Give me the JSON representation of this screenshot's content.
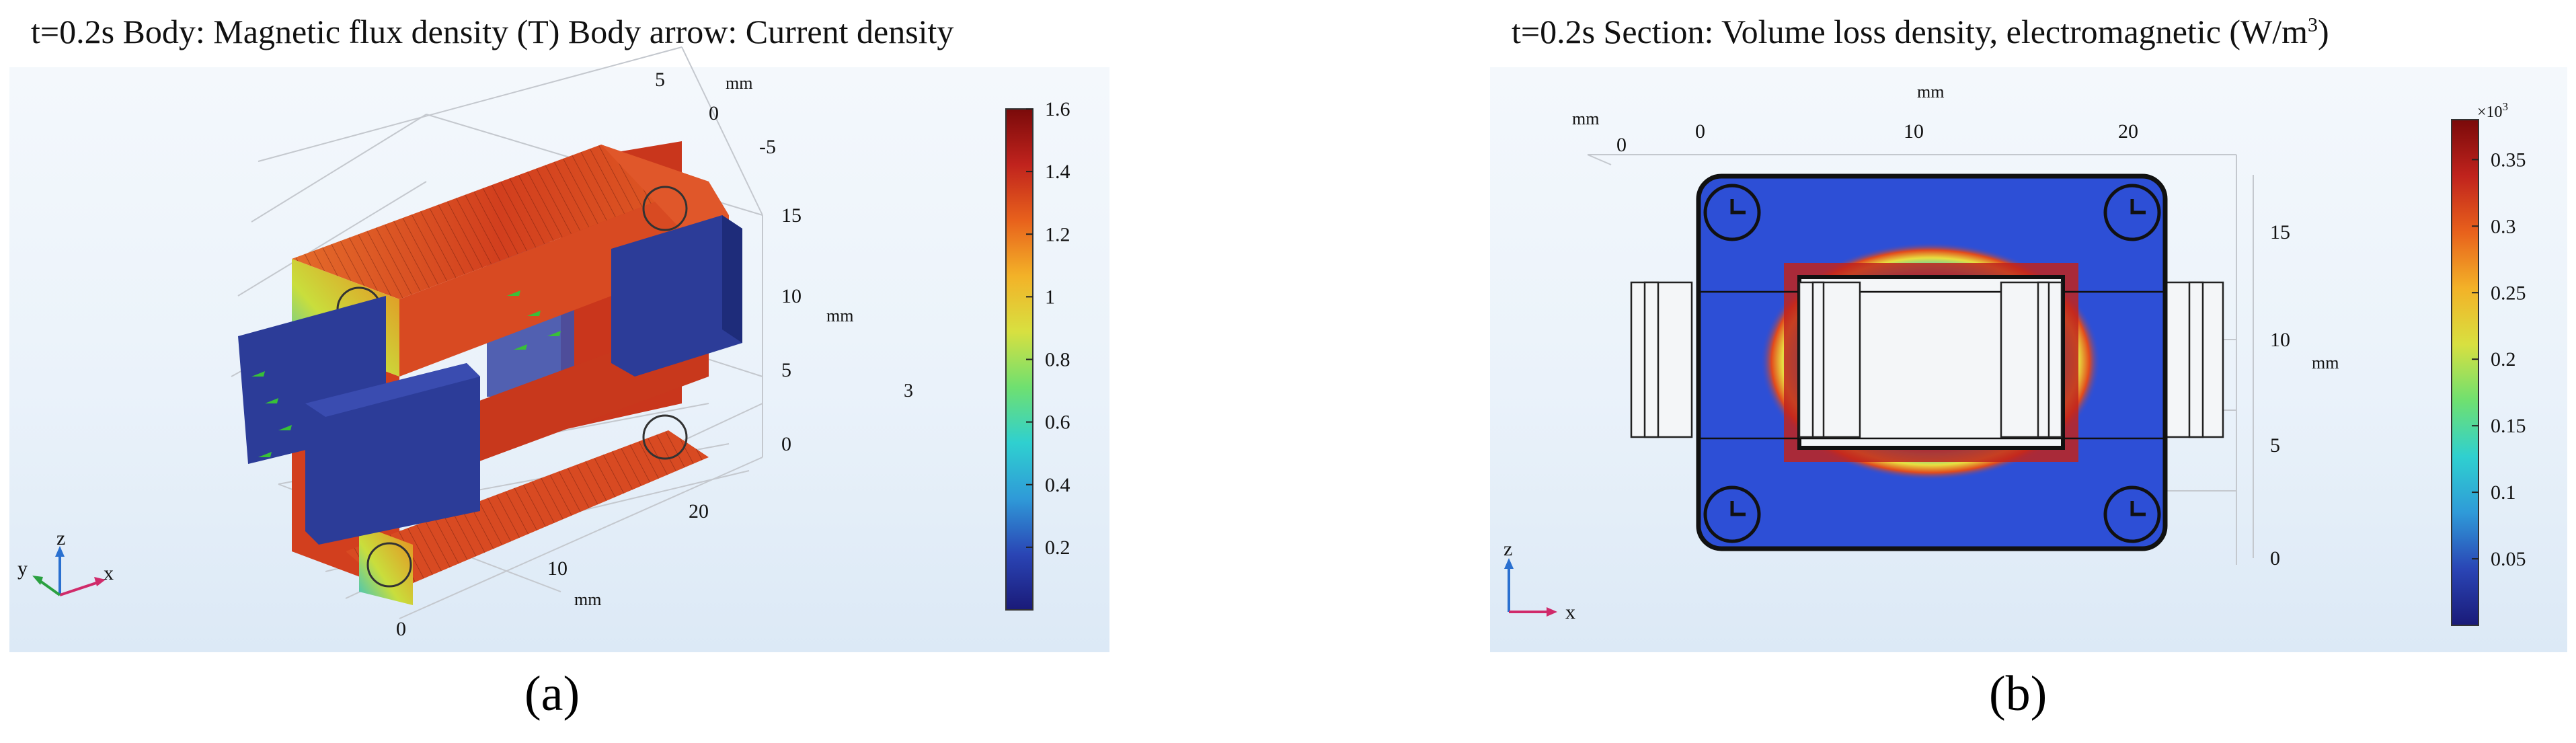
{
  "panels": [
    {
      "id": "a",
      "label": "(a)",
      "title": "t=0.2s  Body: Magnetic flux density (T) Body arrow: Current density",
      "axis_unit": "mm",
      "axis_ticks_y": [
        "5",
        "0",
        "-5"
      ],
      "axis_ticks_z": [
        "15",
        "10",
        "5",
        "0"
      ],
      "axis_ticks_x": [
        "20",
        "10",
        "0"
      ],
      "stray_label": "3",
      "triad": {
        "x": "x",
        "y": "y",
        "z": "z"
      }
    },
    {
      "id": "b",
      "label": "(b)",
      "title_main": "t=0.2s  Section: Volume loss density, electromagnetic (W/m",
      "title_sup": "3",
      "title_close": ")",
      "axis_unit": "mm",
      "axis_ticks_x": [
        "0",
        "10",
        "20"
      ],
      "axis_ticks_y": [
        "15",
        "10",
        "5",
        "0"
      ],
      "stray_tick": "0",
      "triad": {
        "x": "x",
        "z": "z"
      }
    }
  ],
  "chart_data": [
    {
      "type": "heatmap",
      "title": "t=0.2s  Body: Magnetic flux density (T) Body arrow: Current density",
      "quantity": "Magnetic flux density (T)",
      "colorbar": {
        "min": 0,
        "max": 1.6,
        "ticks": [
          0.2,
          0.4,
          0.6,
          0.8,
          1,
          1.2,
          1.4,
          1.6
        ],
        "tick_labels": [
          "0.2",
          "0.4",
          "0.6",
          "0.8",
          "1",
          "1.2",
          "1.4",
          "1.6"
        ],
        "colormap": [
          "#1a1a78",
          "#2a45b5",
          "#2f9ad8",
          "#2fd0d0",
          "#6fe070",
          "#d8e040",
          "#f3b228",
          "#e8611c",
          "#c0231d",
          "#7a0a0a"
        ]
      },
      "core_color": "#d84a22",
      "coil_color": "#2c3c98",
      "arrow_color": "#30c030"
    },
    {
      "type": "heatmap",
      "title": "t=0.2s  Section: Volume loss density, electromagnetic (W/m3)",
      "quantity": "Volume loss density, electromagnetic (W/m3)",
      "colorbar": {
        "multiplier": "×10",
        "multiplier_exp": "3",
        "min": 0,
        "max": 0.38,
        "ticks": [
          0.05,
          0.1,
          0.15,
          0.2,
          0.25,
          0.3,
          0.35
        ],
        "tick_labels": [
          "0.05",
          "0.1",
          "0.15",
          "0.2",
          "0.25",
          "0.3",
          "0.35"
        ],
        "colormap": [
          "#1a1a78",
          "#2a45b5",
          "#2f9ad8",
          "#2fd0d0",
          "#6fe070",
          "#d8e040",
          "#f3b228",
          "#e8611c",
          "#c0231d",
          "#7a0a0a"
        ]
      },
      "xlim": [
        -2,
        26
      ],
      "ylim": [
        0,
        17
      ],
      "background_color": "#2d4fd6"
    }
  ]
}
